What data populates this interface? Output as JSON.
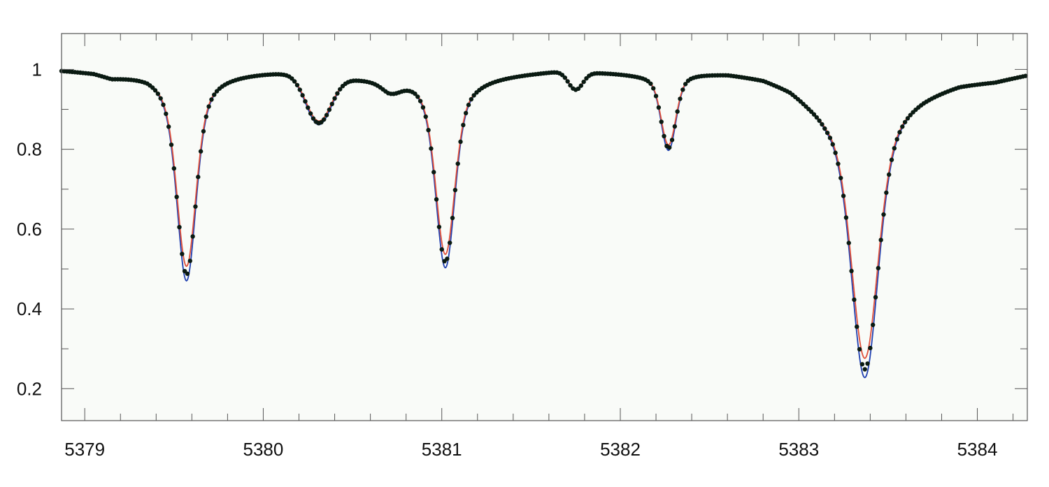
{
  "chart_data": {
    "type": "line",
    "title": "",
    "xlabel": "",
    "ylabel": "",
    "xlim": [
      5378.87,
      5384.28
    ],
    "ylim": [
      0.12,
      1.09
    ],
    "grid": false,
    "x_ticks": [
      5379,
      5380,
      5381,
      5382,
      5383,
      5384
    ],
    "x_tick_labels": [
      "5379",
      "5380",
      "5381",
      "5382",
      "5383",
      "5384"
    ],
    "x_minor_step": 0.2,
    "y_ticks": [
      0.2,
      0.4,
      0.6,
      0.8,
      1.0
    ],
    "y_tick_labels": [
      "0.2",
      "0.4",
      "0.6",
      "0.8",
      "1"
    ],
    "y_minor_step": 0.1,
    "background": "#f9fbf8",
    "continuum": [
      [
        5378.87,
        1.0
      ],
      [
        5379.05,
        0.995
      ],
      [
        5379.15,
        0.985
      ],
      [
        5379.35,
        0.995
      ],
      [
        5379.45,
        0.99
      ],
      [
        5379.85,
        0.995
      ],
      [
        5380.15,
        1.0
      ],
      [
        5380.5,
        0.985
      ],
      [
        5380.7,
        0.975
      ],
      [
        5380.85,
        0.985
      ],
      [
        5381.2,
        0.985
      ],
      [
        5381.5,
        0.995
      ],
      [
        5381.65,
        1.0
      ],
      [
        5381.95,
        0.995
      ],
      [
        5382.15,
        0.99
      ],
      [
        5382.45,
        0.995
      ],
      [
        5382.6,
        0.995
      ],
      [
        5382.8,
        0.985
      ],
      [
        5382.95,
        0.965
      ],
      [
        5383.05,
        0.94
      ],
      [
        5383.15,
        0.92
      ],
      [
        5383.3,
        0.915
      ],
      [
        5383.5,
        0.925
      ],
      [
        5383.7,
        0.95
      ],
      [
        5383.9,
        0.97
      ],
      [
        5384.1,
        0.975
      ],
      [
        5384.28,
        0.99
      ]
    ],
    "absorption_lines": [
      {
        "center": 5379.57,
        "depth": 0.52,
        "width": 0.05,
        "wings": 0.5
      },
      {
        "center": 5380.31,
        "depth": 0.125,
        "width": 0.07,
        "wings": 0.1
      },
      {
        "center": 5380.72,
        "depth": 0.02,
        "width": 0.05,
        "wings": 0.0
      },
      {
        "center": 5381.02,
        "depth": 0.48,
        "width": 0.05,
        "wings": 0.5
      },
      {
        "center": 5381.75,
        "depth": 0.045,
        "width": 0.04,
        "wings": 0.0
      },
      {
        "center": 5382.27,
        "depth": 0.19,
        "width": 0.04,
        "wings": 0.3
      },
      {
        "center": 5383.37,
        "depth": 0.69,
        "width": 0.07,
        "wings": 0.5
      }
    ],
    "series": [
      {
        "role": "observed",
        "style": "markers",
        "color": "#0a1a12",
        "point_step": 0.015,
        "depth_scale": 0.97
      },
      {
        "role": "model-1",
        "style": "line",
        "color": "#e0503a",
        "depth_scale": 0.93
      },
      {
        "role": "model-2",
        "style": "line",
        "color": "#1f3fb0",
        "depth_scale": 1.0
      }
    ]
  }
}
